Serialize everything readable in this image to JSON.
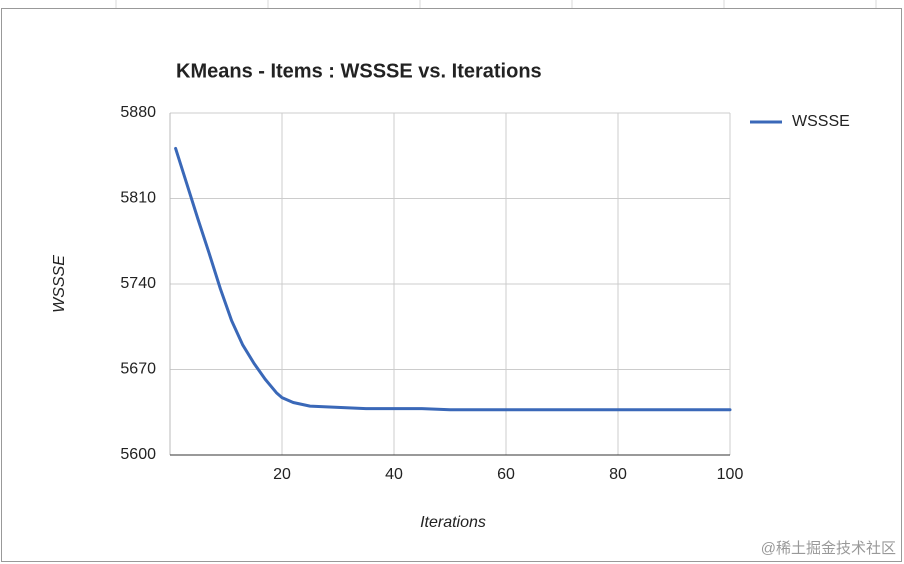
{
  "chart_data": {
    "type": "line",
    "title": "KMeans - Items : WSSSE vs. Iterations",
    "x_label": "Iterations",
    "y_label": "WSSSE",
    "x": [
      1,
      3,
      5,
      7,
      9,
      11,
      13,
      15,
      17,
      19,
      20,
      22,
      25,
      30,
      35,
      40,
      45,
      50,
      55,
      60,
      65,
      70,
      75,
      80,
      85,
      90,
      95,
      100
    ],
    "series": [
      {
        "name": "WSSSE",
        "color": "#3a68b8",
        "values": [
          5851,
          5822,
          5793,
          5765,
          5736,
          5710,
          5690,
          5675,
          5662,
          5651,
          5647,
          5643,
          5640,
          5639,
          5638,
          5638,
          5638,
          5637,
          5637,
          5637,
          5637,
          5637,
          5637,
          5637,
          5637,
          5637,
          5637,
          5637
        ]
      }
    ],
    "xlim": [
      0,
      100
    ],
    "xticks": [
      20,
      40,
      60,
      80,
      100
    ],
    "ylim": [
      5600,
      5880
    ],
    "yticks": [
      5600,
      5670,
      5740,
      5810,
      5880
    ],
    "grid": true,
    "legend": "right",
    "watermark": "@稀土掘金技术社区"
  }
}
